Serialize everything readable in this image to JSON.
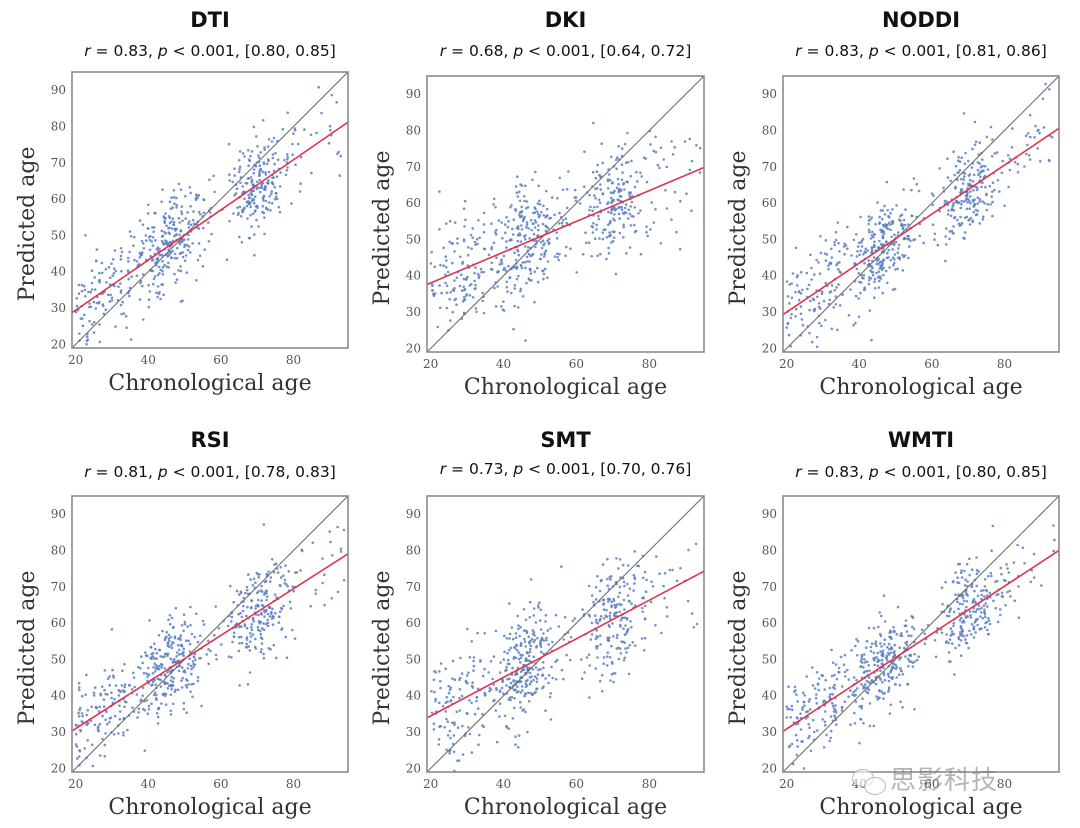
{
  "figure": {
    "watermark": "思影科技",
    "colors": {
      "points": "#5b7fc2",
      "regression": "#e0334f",
      "identity": "#6e6e6e",
      "frame": "#8a8a8a"
    }
  },
  "chart_data": [
    {
      "type": "scatter",
      "title": "DTI",
      "stats": {
        "r": "0.83",
        "p": "< 0.001",
        "ci": "[0.80, 0.85]"
      },
      "xlabel": "Chronological age",
      "ylabel": "Predicted age",
      "xlim": [
        19,
        95
      ],
      "ylim": [
        19,
        95
      ],
      "xticks": [
        20,
        40,
        60,
        80
      ],
      "yticks": [
        20,
        30,
        40,
        50,
        60,
        70,
        80,
        90
      ],
      "identity_line": [
        [
          19,
          19
        ],
        [
          95,
          95
        ]
      ],
      "regression_line": [
        [
          19,
          28.7
        ],
        [
          95,
          81.2
        ]
      ],
      "point_cloud": {
        "n": 620,
        "x_range": [
          19,
          95
        ],
        "note": "approximate scatter of predicted vs chronological age",
        "spread_sd": 6.5
      },
      "grid": false,
      "legend": "none"
    },
    {
      "type": "scatter",
      "title": "DKI",
      "stats": {
        "r": "0.68",
        "p": "< 0.001",
        "ci": "[0.64, 0.72]"
      },
      "xlabel": "Chronological age",
      "ylabel": "Predicted age",
      "xlim": [
        19,
        95
      ],
      "ylim": [
        19,
        95
      ],
      "xticks": [
        20,
        40,
        60,
        80
      ],
      "yticks": [
        20,
        30,
        40,
        50,
        60,
        70,
        80,
        90
      ],
      "identity_line": [
        [
          19,
          19
        ],
        [
          95,
          95
        ]
      ],
      "regression_line": [
        [
          19,
          37.6
        ],
        [
          95,
          69.8
        ]
      ],
      "point_cloud": {
        "n": 620,
        "x_range": [
          19,
          95
        ],
        "note": "approximate scatter of predicted vs chronological age",
        "spread_sd": 8.0
      },
      "grid": false,
      "legend": "none"
    },
    {
      "type": "scatter",
      "title": "NODDI",
      "stats": {
        "r": "0.83",
        "p": "< 0.001",
        "ci": "[0.81, 0.86]"
      },
      "xlabel": "Chronological age",
      "ylabel": "Predicted age",
      "xlim": [
        19,
        95
      ],
      "ylim": [
        19,
        95
      ],
      "xticks": [
        20,
        40,
        60,
        80
      ],
      "yticks": [
        20,
        30,
        40,
        50,
        60,
        70,
        80,
        90
      ],
      "identity_line": [
        [
          19,
          19
        ],
        [
          95,
          95
        ]
      ],
      "regression_line": [
        [
          19,
          29.3
        ],
        [
          95,
          80.6
        ]
      ],
      "point_cloud": {
        "n": 620,
        "x_range": [
          19,
          95
        ],
        "note": "approximate scatter of predicted vs chronological age",
        "spread_sd": 6.5
      },
      "grid": false,
      "legend": "none"
    },
    {
      "type": "scatter",
      "title": "RSI",
      "stats": {
        "r": "0.81",
        "p": "< 0.001",
        "ci": "[0.78, 0.83]"
      },
      "xlabel": "Chronological age",
      "ylabel": "Predicted age",
      "xlim": [
        19,
        95
      ],
      "ylim": [
        19,
        95
      ],
      "xticks": [
        20,
        40,
        60,
        80
      ],
      "yticks": [
        20,
        30,
        40,
        50,
        60,
        70,
        80,
        90
      ],
      "identity_line": [
        [
          19,
          19
        ],
        [
          95,
          95
        ]
      ],
      "regression_line": [
        [
          19,
          30.3
        ],
        [
          95,
          79.1
        ]
      ],
      "point_cloud": {
        "n": 620,
        "x_range": [
          19,
          95
        ],
        "note": "approximate scatter of predicted vs chronological age",
        "spread_sd": 6.8
      },
      "grid": false,
      "legend": "none"
    },
    {
      "type": "scatter",
      "title": "SMT",
      "stats": {
        "r": "0.73",
        "p": "< 0.001",
        "ci": "[0.70, 0.76]"
      },
      "xlabel": "Chronological age",
      "ylabel": "Predicted age",
      "xlim": [
        19,
        95
      ],
      "ylim": [
        19,
        95
      ],
      "xticks": [
        20,
        40,
        60,
        80
      ],
      "yticks": [
        20,
        30,
        40,
        50,
        60,
        70,
        80,
        90
      ],
      "identity_line": [
        [
          19,
          19
        ],
        [
          95,
          95
        ]
      ],
      "regression_line": [
        [
          19,
          33.9
        ],
        [
          95,
          74.3
        ]
      ],
      "point_cloud": {
        "n": 620,
        "x_range": [
          19,
          95
        ],
        "note": "approximate scatter of predicted vs chronological age",
        "spread_sd": 7.5
      },
      "grid": false,
      "legend": "none"
    },
    {
      "type": "scatter",
      "title": "WMTI",
      "stats": {
        "r": "0.83",
        "p": "< 0.001",
        "ci": "[0.80, 0.85]"
      },
      "xlabel": "Chronological age",
      "ylabel": "Predicted age",
      "xlim": [
        19,
        95
      ],
      "ylim": [
        19,
        95
      ],
      "xticks": [
        20,
        40,
        60,
        80
      ],
      "yticks": [
        20,
        30,
        40,
        50,
        60,
        70,
        80,
        90
      ],
      "identity_line": [
        [
          19,
          19
        ],
        [
          95,
          95
        ]
      ],
      "regression_line": [
        [
          19,
          30.2
        ],
        [
          95,
          80.0
        ]
      ],
      "point_cloud": {
        "n": 620,
        "x_range": [
          19,
          95
        ],
        "note": "approximate scatter of predicted vs chronological age",
        "spread_sd": 6.5
      },
      "grid": false,
      "legend": "none"
    }
  ]
}
